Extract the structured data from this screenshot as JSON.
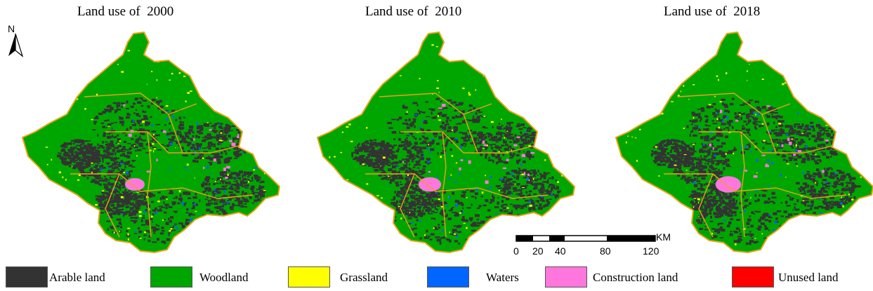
{
  "maps": [
    {
      "title": "Land use of  2000"
    },
    {
      "title": "Land use of  2010"
    },
    {
      "title": "Land use of  2018"
    }
  ],
  "north_arrow": {
    "label": "N"
  },
  "scale_bar": {
    "unit": "KM",
    "ticks": [
      "0",
      "20",
      "40",
      "80",
      "120"
    ]
  },
  "legend": {
    "items": [
      {
        "label": "Arable land",
        "color": "#333333"
      },
      {
        "label": "Woodland",
        "color": "#00a600"
      },
      {
        "label": "Grassland",
        "color": "#ffff00"
      },
      {
        "label": "Waters",
        "color": "#0066ff"
      },
      {
        "label": "Construction land",
        "color": "#ff77dd"
      },
      {
        "label": "Unused land",
        "color": "#ff0000"
      }
    ]
  },
  "colors": {
    "boundary": "#e8a317"
  }
}
